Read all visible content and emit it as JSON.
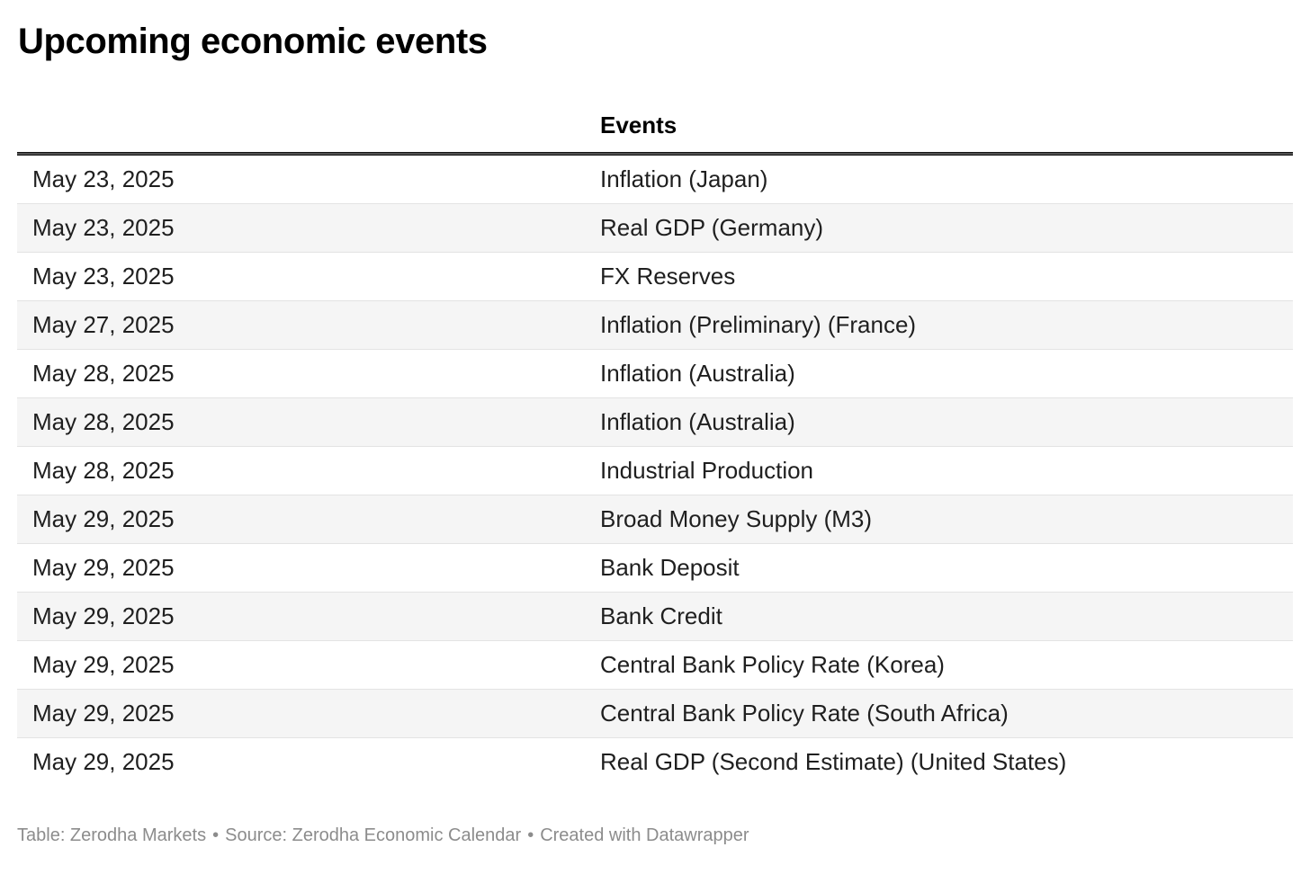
{
  "title": "Upcoming economic events",
  "chart_data": {
    "type": "table",
    "title": "Upcoming economic events",
    "columns": [
      "",
      "Events"
    ],
    "rows": [
      {
        "date": "May 23, 2025",
        "event": "Inflation (Japan)"
      },
      {
        "date": "May 23, 2025",
        "event": "Real GDP (Germany)"
      },
      {
        "date": "May 23, 2025",
        "event": "FX Reserves"
      },
      {
        "date": "May 27, 2025",
        "event": "Inflation (Preliminary) (France)"
      },
      {
        "date": "May 28, 2025",
        "event": "Inflation (Australia)"
      },
      {
        "date": "May 28, 2025",
        "event": "Inflation (Australia)"
      },
      {
        "date": "May 28, 2025",
        "event": "Industrial Production"
      },
      {
        "date": "May 29, 2025",
        "event": "Broad Money Supply (M3)"
      },
      {
        "date": "May 29, 2025",
        "event": "Bank Deposit"
      },
      {
        "date": "May 29, 2025",
        "event": "Bank Credit"
      },
      {
        "date": "May 29, 2025",
        "event": "Central Bank Policy Rate (Korea)"
      },
      {
        "date": "May 29, 2025",
        "event": "Central Bank Policy Rate (South Africa)"
      },
      {
        "date": "May 29, 2025",
        "event": "Real GDP (Second Estimate) (United States)"
      }
    ],
    "layout": {
      "striped_rows": true,
      "header_rule": "double",
      "legend": "none",
      "grid": "horizontal-row-dividers"
    }
  },
  "colors": {
    "title_text": "#000000",
    "body_text": "#1f1f1f",
    "stripe_row": "#f5f5f5",
    "row_divider": "#e3e3e3",
    "header_rule": "#131313",
    "footer_text": "#8c8c8c",
    "background": "#ffffff"
  },
  "footer": {
    "table_credit": "Table: Zerodha Markets",
    "separator": "•",
    "source_credit": "Source: Zerodha Economic Calendar",
    "created_credit": "Created with Datawrapper"
  }
}
